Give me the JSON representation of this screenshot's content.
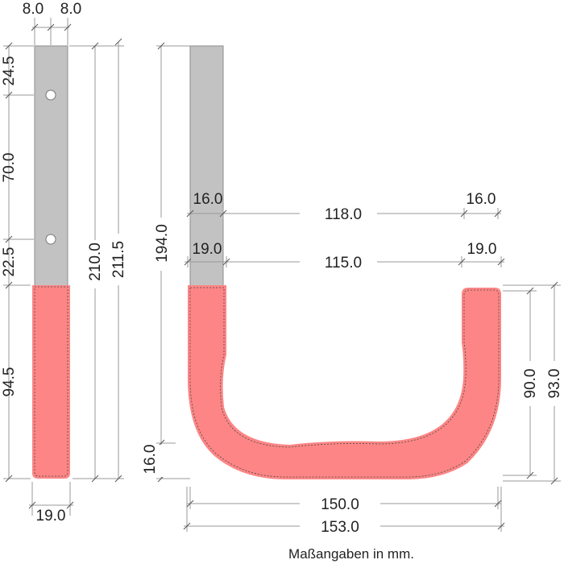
{
  "colors": {
    "steel": "#c2c2c2",
    "coating": "#fd8585",
    "dimension_line": "#9a9a9a",
    "text": "#222222"
  },
  "side_view": {
    "thickness_left": "8.0",
    "thickness_right": "8.0",
    "segment_top": "24.5",
    "segment_holes": "70.0",
    "segment_lower": "22.5",
    "segment_coated": "94.5",
    "length_inner": "210.0",
    "length_total": "211.5",
    "width": "19.0"
  },
  "front_view": {
    "height_total": "194.0",
    "height_bottom": "16.0",
    "inner_wall_top": "16.0",
    "inner_span_top": "118.0",
    "inner_wall_top_right": "16.0",
    "arm_width_left": "19.0",
    "inner_span": "115.0",
    "arm_width_right": "19.0",
    "right_height_inner": "90.0",
    "right_height_outer": "93.0",
    "width_inner": "150.0",
    "width_outer": "153.0"
  },
  "caption": "Maßangaben in mm."
}
